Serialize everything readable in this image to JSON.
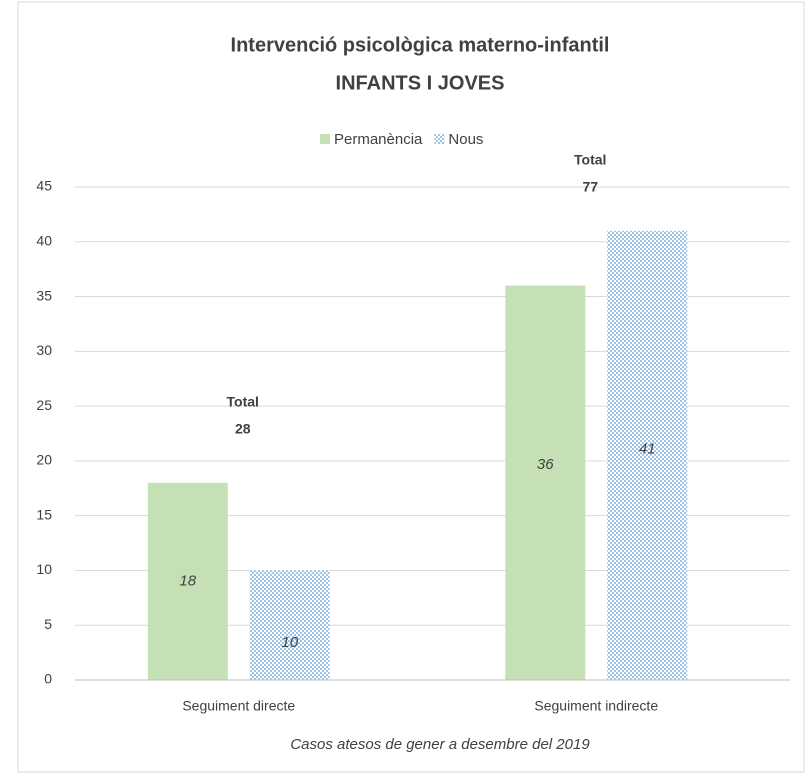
{
  "chart_data": {
    "type": "bar",
    "title": "Intervenció psicològica  materno-infantil",
    "subtitle": "INFANTS I JOVES",
    "x_label": "Casos atesos de gener a desembre del 2019",
    "categories": [
      "Seguiment directe",
      "Seguiment indirecte"
    ],
    "series": [
      {
        "name": "Permanència",
        "color": "#c5e0b4",
        "values": [
          18,
          36
        ]
      },
      {
        "name": "Nous",
        "color": "#9dc3e6",
        "pattern": "checker",
        "values": [
          10,
          41
        ]
      }
    ],
    "annotations": [
      {
        "label": "Total",
        "value": 28
      },
      {
        "label": "Total",
        "value": 77
      }
    ],
    "ylim": [
      0,
      45
    ],
    "yticks": [
      0,
      5,
      10,
      15,
      20,
      25,
      30,
      35,
      40,
      45
    ],
    "grid": true,
    "legend": "top"
  }
}
